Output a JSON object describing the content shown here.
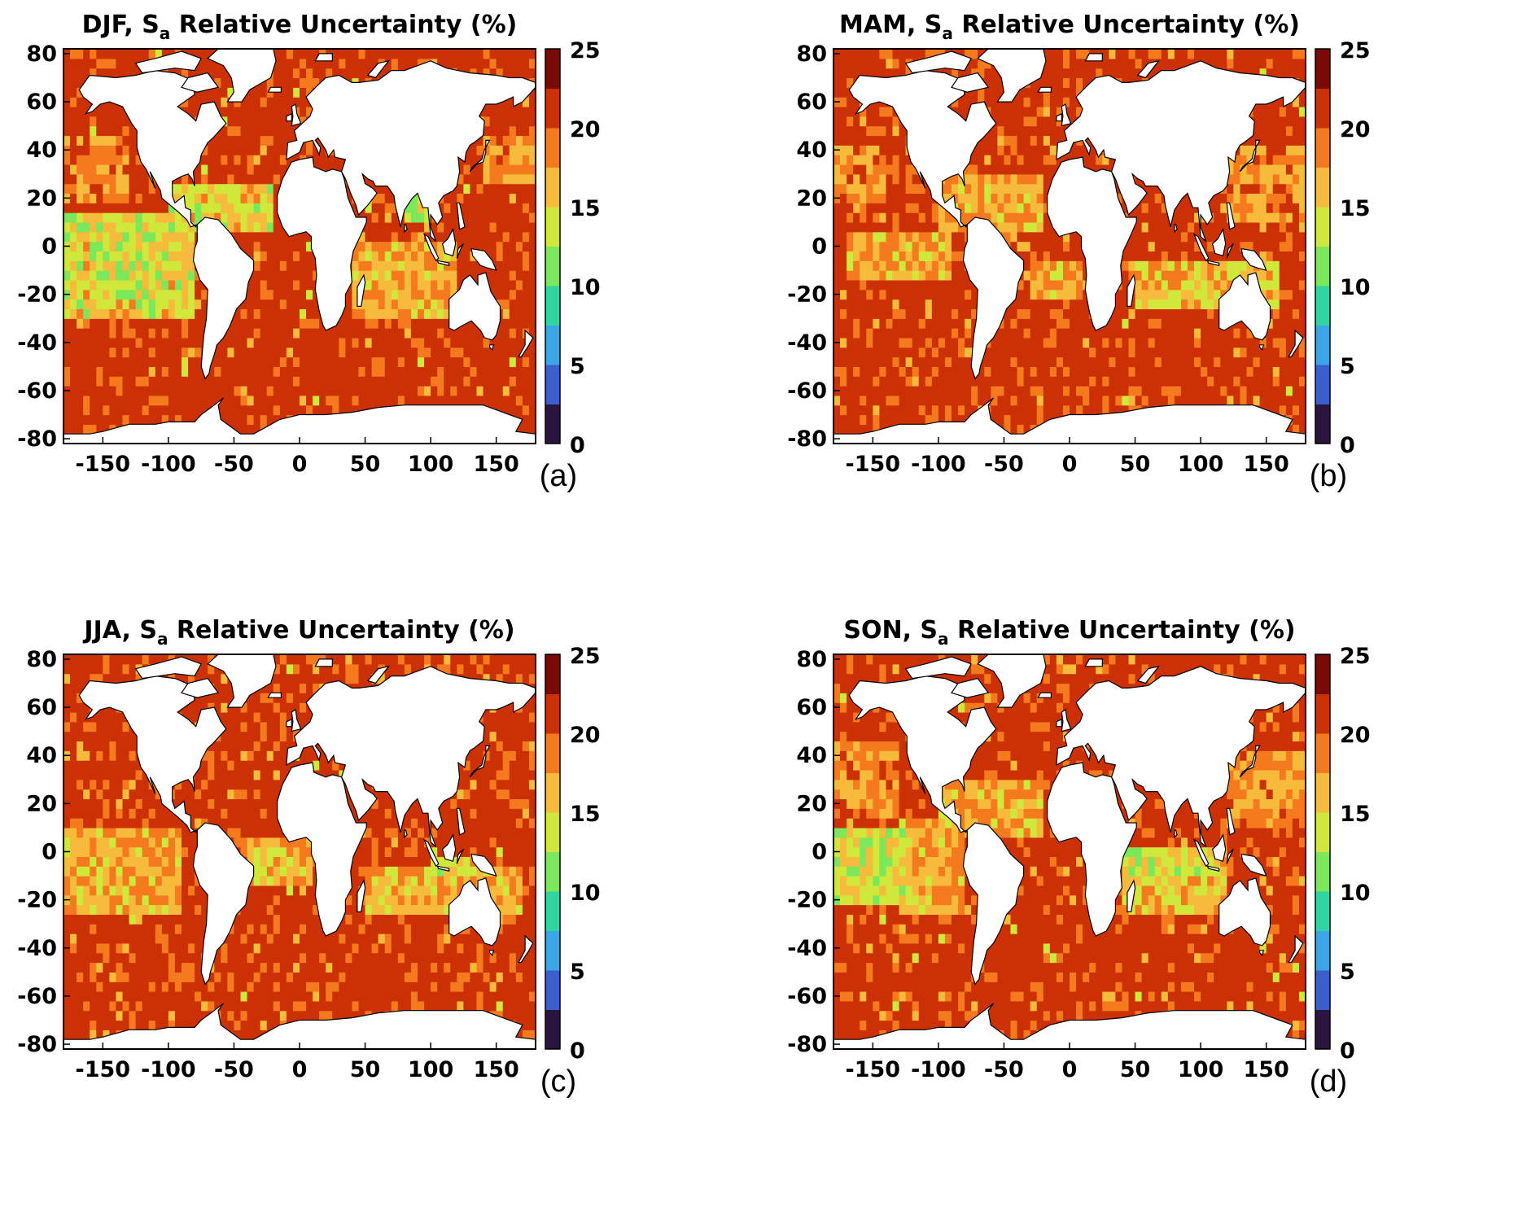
{
  "figure": {
    "colorbar": {
      "ticks": [
        "0",
        "5",
        "10",
        "15",
        "20",
        "25"
      ],
      "range": [
        0,
        25
      ],
      "colors": [
        "#2a1540",
        "#3c5fd0",
        "#3ba6e6",
        "#2ed6a0",
        "#7ae85a",
        "#cfe83a",
        "#f7bb3c",
        "#f57a1e",
        "#cc3106",
        "#7a0a05"
      ]
    },
    "land_color": "#ffffff",
    "coast_color": "#000000"
  },
  "chart_data": [
    {
      "type": "heatmap",
      "title_main": "DJF, S",
      "title_sub": "a",
      "title_rest": " Relative Uncertainty (%)",
      "panel_label": "(a)",
      "season": "DJF",
      "x_ticks": [
        "-150",
        "-100",
        "-50",
        "0",
        "50",
        "100",
        "150"
      ],
      "y_ticks": [
        "80",
        "60",
        "40",
        "20",
        "0",
        "-20",
        "-40",
        "-60",
        "-80"
      ],
      "xlim": [
        -180,
        180
      ],
      "ylim": [
        -82,
        82
      ],
      "zlim": [
        0,
        25
      ],
      "background_value": 21,
      "bands": [
        {
          "lat": [
            -30,
            15
          ],
          "lon": [
            -180,
            -80
          ],
          "value": 15
        },
        {
          "lat": [
            -20,
            10
          ],
          "lon": [
            -160,
            -110
          ],
          "value": 14
        },
        {
          "lat": [
            5,
            25
          ],
          "lon": [
            -100,
            -20
          ],
          "value": 15
        },
        {
          "lat": [
            -30,
            0
          ],
          "lon": [
            40,
            120
          ],
          "value": 17
        },
        {
          "lat": [
            10,
            25
          ],
          "lon": [
            80,
            100
          ],
          "value": 13
        },
        {
          "lat": [
            25,
            45
          ],
          "lon": [
            140,
            180
          ],
          "value": 18
        },
        {
          "lat": [
            20,
            45
          ],
          "lon": [
            -180,
            -130
          ],
          "value": 18
        }
      ],
      "speckle_seed": 11
    },
    {
      "type": "heatmap",
      "title_main": "MAM, S",
      "title_sub": "a",
      "title_rest": " Relative Uncertainty (%)",
      "panel_label": "(b)",
      "season": "MAM",
      "x_ticks": [
        "-150",
        "-100",
        "-50",
        "0",
        "50",
        "100",
        "150"
      ],
      "y_ticks": [
        "80",
        "60",
        "40",
        "20",
        "0",
        "-20",
        "-40",
        "-60",
        "-80"
      ],
      "xlim": [
        -180,
        180
      ],
      "ylim": [
        -82,
        82
      ],
      "zlim": [
        0,
        25
      ],
      "background_value": 21,
      "bands": [
        {
          "lat": [
            -15,
            5
          ],
          "lon": [
            -170,
            -90
          ],
          "value": 17
        },
        {
          "lat": [
            5,
            30
          ],
          "lon": [
            -100,
            -20
          ],
          "value": 17
        },
        {
          "lat": [
            -20,
            -5
          ],
          "lon": [
            -30,
            10
          ],
          "value": 17
        },
        {
          "lat": [
            -25,
            -5
          ],
          "lon": [
            50,
            160
          ],
          "value": 16
        },
        {
          "lat": [
            10,
            40
          ],
          "lon": [
            120,
            180
          ],
          "value": 18
        },
        {
          "lat": [
            20,
            40
          ],
          "lon": [
            -180,
            -140
          ],
          "value": 18
        }
      ],
      "speckle_seed": 23
    },
    {
      "type": "heatmap",
      "title_main": "JJA, S",
      "title_sub": "a",
      "title_rest": " Relative Uncertainty (%)",
      "panel_label": "(c)",
      "season": "JJA",
      "x_ticks": [
        "-150",
        "-100",
        "-50",
        "0",
        "50",
        "100",
        "150"
      ],
      "y_ticks": [
        "80",
        "60",
        "40",
        "20",
        "0",
        "-20",
        "-40",
        "-60",
        "-80"
      ],
      "xlim": [
        -180,
        180
      ],
      "ylim": [
        -82,
        82
      ],
      "zlim": [
        0,
        25
      ],
      "background_value": 21,
      "bands": [
        {
          "lat": [
            -25,
            10
          ],
          "lon": [
            -180,
            -90
          ],
          "value": 17
        },
        {
          "lat": [
            -15,
            5
          ],
          "lon": [
            -40,
            10
          ],
          "value": 17
        },
        {
          "lat": [
            -25,
            -5
          ],
          "lon": [
            50,
            170
          ],
          "value": 17
        },
        {
          "lat": [
            -10,
            -3
          ],
          "lon": [
            100,
            130
          ],
          "value": 14
        }
      ],
      "speckle_seed": 37
    },
    {
      "type": "heatmap",
      "title_main": "SON, S",
      "title_sub": "a",
      "title_rest": " Relative Uncertainty (%)",
      "panel_label": "(d)",
      "season": "SON",
      "x_ticks": [
        "-150",
        "-100",
        "-50",
        "0",
        "50",
        "100",
        "150"
      ],
      "y_ticks": [
        "80",
        "60",
        "40",
        "20",
        "0",
        "-20",
        "-40",
        "-60",
        "-80"
      ],
      "xlim": [
        -180,
        180
      ],
      "ylim": [
        -82,
        82
      ],
      "zlim": [
        0,
        25
      ],
      "background_value": 21,
      "bands": [
        {
          "lat": [
            -20,
            10
          ],
          "lon": [
            -180,
            -120
          ],
          "value": 14
        },
        {
          "lat": [
            -25,
            15
          ],
          "lon": [
            -130,
            -80
          ],
          "value": 17
        },
        {
          "lat": [
            5,
            30
          ],
          "lon": [
            -100,
            -20
          ],
          "value": 17
        },
        {
          "lat": [
            -25,
            0
          ],
          "lon": [
            40,
            120
          ],
          "value": 16
        },
        {
          "lat": [
            -10,
            0
          ],
          "lon": [
            40,
            110
          ],
          "value": 14
        },
        {
          "lat": [
            10,
            40
          ],
          "lon": [
            120,
            180
          ],
          "value": 18
        },
        {
          "lat": [
            15,
            45
          ],
          "lon": [
            -180,
            -130
          ],
          "value": 18
        }
      ],
      "speckle_seed": 51
    }
  ]
}
